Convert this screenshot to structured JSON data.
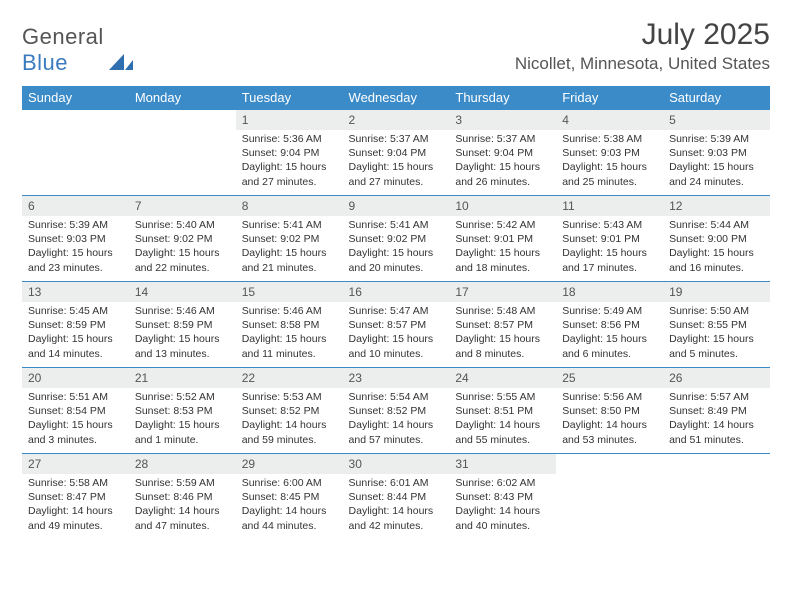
{
  "logo": {
    "part1": "General",
    "part2": "Blue",
    "icon_color": "#2f6fb0"
  },
  "title": "July 2025",
  "location": "Nicollet, Minnesota, United States",
  "colors": {
    "header_bg": "#3b8bc9",
    "header_text": "#ffffff",
    "daynum_bg": "#eceded",
    "rule": "#3b8bc9",
    "logo_gray": "#555555",
    "logo_blue": "#3b7bbf"
  },
  "day_headers": [
    "Sunday",
    "Monday",
    "Tuesday",
    "Wednesday",
    "Thursday",
    "Friday",
    "Saturday"
  ],
  "weeks": [
    [
      {
        "n": "",
        "lines": []
      },
      {
        "n": "",
        "lines": []
      },
      {
        "n": "1",
        "lines": [
          "Sunrise: 5:36 AM",
          "Sunset: 9:04 PM",
          "Daylight: 15 hours and 27 minutes."
        ]
      },
      {
        "n": "2",
        "lines": [
          "Sunrise: 5:37 AM",
          "Sunset: 9:04 PM",
          "Daylight: 15 hours and 27 minutes."
        ]
      },
      {
        "n": "3",
        "lines": [
          "Sunrise: 5:37 AM",
          "Sunset: 9:04 PM",
          "Daylight: 15 hours and 26 minutes."
        ]
      },
      {
        "n": "4",
        "lines": [
          "Sunrise: 5:38 AM",
          "Sunset: 9:03 PM",
          "Daylight: 15 hours and 25 minutes."
        ]
      },
      {
        "n": "5",
        "lines": [
          "Sunrise: 5:39 AM",
          "Sunset: 9:03 PM",
          "Daylight: 15 hours and 24 minutes."
        ]
      }
    ],
    [
      {
        "n": "6",
        "lines": [
          "Sunrise: 5:39 AM",
          "Sunset: 9:03 PM",
          "Daylight: 15 hours and 23 minutes."
        ]
      },
      {
        "n": "7",
        "lines": [
          "Sunrise: 5:40 AM",
          "Sunset: 9:02 PM",
          "Daylight: 15 hours and 22 minutes."
        ]
      },
      {
        "n": "8",
        "lines": [
          "Sunrise: 5:41 AM",
          "Sunset: 9:02 PM",
          "Daylight: 15 hours and 21 minutes."
        ]
      },
      {
        "n": "9",
        "lines": [
          "Sunrise: 5:41 AM",
          "Sunset: 9:02 PM",
          "Daylight: 15 hours and 20 minutes."
        ]
      },
      {
        "n": "10",
        "lines": [
          "Sunrise: 5:42 AM",
          "Sunset: 9:01 PM",
          "Daylight: 15 hours and 18 minutes."
        ]
      },
      {
        "n": "11",
        "lines": [
          "Sunrise: 5:43 AM",
          "Sunset: 9:01 PM",
          "Daylight: 15 hours and 17 minutes."
        ]
      },
      {
        "n": "12",
        "lines": [
          "Sunrise: 5:44 AM",
          "Sunset: 9:00 PM",
          "Daylight: 15 hours and 16 minutes."
        ]
      }
    ],
    [
      {
        "n": "13",
        "lines": [
          "Sunrise: 5:45 AM",
          "Sunset: 8:59 PM",
          "Daylight: 15 hours and 14 minutes."
        ]
      },
      {
        "n": "14",
        "lines": [
          "Sunrise: 5:46 AM",
          "Sunset: 8:59 PM",
          "Daylight: 15 hours and 13 minutes."
        ]
      },
      {
        "n": "15",
        "lines": [
          "Sunrise: 5:46 AM",
          "Sunset: 8:58 PM",
          "Daylight: 15 hours and 11 minutes."
        ]
      },
      {
        "n": "16",
        "lines": [
          "Sunrise: 5:47 AM",
          "Sunset: 8:57 PM",
          "Daylight: 15 hours and 10 minutes."
        ]
      },
      {
        "n": "17",
        "lines": [
          "Sunrise: 5:48 AM",
          "Sunset: 8:57 PM",
          "Daylight: 15 hours and 8 minutes."
        ]
      },
      {
        "n": "18",
        "lines": [
          "Sunrise: 5:49 AM",
          "Sunset: 8:56 PM",
          "Daylight: 15 hours and 6 minutes."
        ]
      },
      {
        "n": "19",
        "lines": [
          "Sunrise: 5:50 AM",
          "Sunset: 8:55 PM",
          "Daylight: 15 hours and 5 minutes."
        ]
      }
    ],
    [
      {
        "n": "20",
        "lines": [
          "Sunrise: 5:51 AM",
          "Sunset: 8:54 PM",
          "Daylight: 15 hours and 3 minutes."
        ]
      },
      {
        "n": "21",
        "lines": [
          "Sunrise: 5:52 AM",
          "Sunset: 8:53 PM",
          "Daylight: 15 hours and 1 minute."
        ]
      },
      {
        "n": "22",
        "lines": [
          "Sunrise: 5:53 AM",
          "Sunset: 8:52 PM",
          "Daylight: 14 hours and 59 minutes."
        ]
      },
      {
        "n": "23",
        "lines": [
          "Sunrise: 5:54 AM",
          "Sunset: 8:52 PM",
          "Daylight: 14 hours and 57 minutes."
        ]
      },
      {
        "n": "24",
        "lines": [
          "Sunrise: 5:55 AM",
          "Sunset: 8:51 PM",
          "Daylight: 14 hours and 55 minutes."
        ]
      },
      {
        "n": "25",
        "lines": [
          "Sunrise: 5:56 AM",
          "Sunset: 8:50 PM",
          "Daylight: 14 hours and 53 minutes."
        ]
      },
      {
        "n": "26",
        "lines": [
          "Sunrise: 5:57 AM",
          "Sunset: 8:49 PM",
          "Daylight: 14 hours and 51 minutes."
        ]
      }
    ],
    [
      {
        "n": "27",
        "lines": [
          "Sunrise: 5:58 AM",
          "Sunset: 8:47 PM",
          "Daylight: 14 hours and 49 minutes."
        ]
      },
      {
        "n": "28",
        "lines": [
          "Sunrise: 5:59 AM",
          "Sunset: 8:46 PM",
          "Daylight: 14 hours and 47 minutes."
        ]
      },
      {
        "n": "29",
        "lines": [
          "Sunrise: 6:00 AM",
          "Sunset: 8:45 PM",
          "Daylight: 14 hours and 44 minutes."
        ]
      },
      {
        "n": "30",
        "lines": [
          "Sunrise: 6:01 AM",
          "Sunset: 8:44 PM",
          "Daylight: 14 hours and 42 minutes."
        ]
      },
      {
        "n": "31",
        "lines": [
          "Sunrise: 6:02 AM",
          "Sunset: 8:43 PM",
          "Daylight: 14 hours and 40 minutes."
        ]
      },
      {
        "n": "",
        "lines": []
      },
      {
        "n": "",
        "lines": []
      }
    ]
  ]
}
